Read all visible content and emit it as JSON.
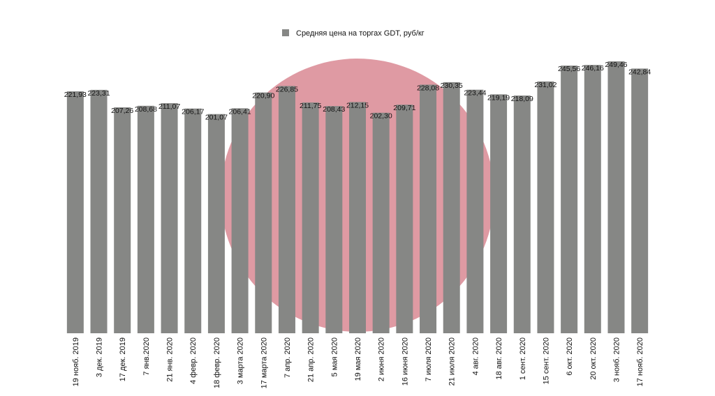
{
  "chart_data": {
    "type": "bar",
    "categories": [
      "19 нояб. 2019",
      "3 дек. 2019",
      "17 дек. 2019",
      "7 янв.2020",
      "21 янв. 2020",
      "4 февр. 2020",
      "18 февр. 2020",
      "3 марта 2020",
      "17 марта 2020",
      "7 апр. 2020",
      "21 апр. 2020",
      "5 мая 2020",
      "19 мая 2020",
      "2 июня 2020",
      "16 июня 2020",
      "7 июля 2020",
      "21 июля 2020",
      "4 авг. 2020",
      "18 авг. 2020",
      "1 сент. 2020",
      "15 сент. 2020",
      "6 окт. 2020",
      "20 окт. 2020",
      "3 нояб. 2020",
      "17 нояб. 2020"
    ],
    "series": [
      {
        "name": "Средняя цена на торгах GDT, руб/кг",
        "color": "#868785",
        "values": [
          221.93,
          223.31,
          207.26,
          208.68,
          211.07,
          206.17,
          201.07,
          206.41,
          220.9,
          226.85,
          211.75,
          208.43,
          212.15,
          202.3,
          209.71,
          228.08,
          230.35,
          223.44,
          219.19,
          218.09,
          231.02,
          245.56,
          246.16,
          249.46,
          242.84
        ],
        "value_labels": [
          "221,93",
          "223,31",
          "207,26",
          "208,68",
          "211,07",
          "206,17",
          "201,07",
          "206,41",
          "220,90",
          "226,85",
          "211,75",
          "208,43",
          "212,15",
          "202,30",
          "209,71",
          "228,08",
          "230,35",
          "223,44",
          "219,19",
          "218,09",
          "231,02",
          "245,56",
          "246,16",
          "249,46",
          "242,84"
        ]
      }
    ]
  }
}
